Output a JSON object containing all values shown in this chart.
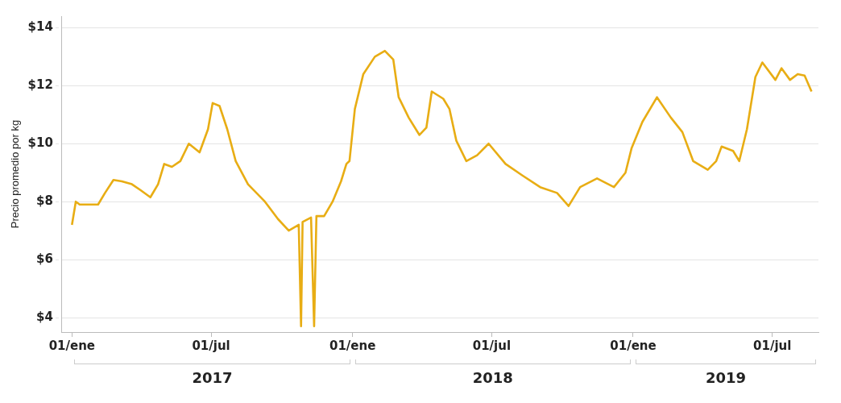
{
  "chart_data": {
    "type": "line",
    "ylabel": "Precio promedio por kg",
    "x": [
      "2017-01-01",
      "2017-01-06",
      "2017-01-11",
      "2017-01-24",
      "2017-02-04",
      "2017-02-13",
      "2017-02-24",
      "2017-03-07",
      "2017-03-20",
      "2017-03-31",
      "2017-04-13",
      "2017-04-23",
      "2017-05-01",
      "2017-05-11",
      "2017-05-22",
      "2017-06-02",
      "2017-06-16",
      "2017-06-27",
      "2017-07-03",
      "2017-07-12",
      "2017-07-22",
      "2017-08-02",
      "2017-08-18",
      "2017-09-09",
      "2017-09-26",
      "2017-10-10",
      "2017-10-23",
      "2017-10-26",
      "2017-10-28",
      "2017-11-08",
      "2017-11-12",
      "2017-11-15",
      "2017-11-25",
      "2017-12-06",
      "2017-12-17",
      "2017-12-24",
      "2017-12-28",
      "2018-01-04",
      "2018-01-15",
      "2018-01-30",
      "2018-02-12",
      "2018-02-23",
      "2018-03-02",
      "2018-03-15",
      "2018-03-29",
      "2018-04-07",
      "2018-04-14",
      "2018-04-29",
      "2018-05-07",
      "2018-05-16",
      "2018-05-29",
      "2018-06-12",
      "2018-06-27",
      "2018-07-19",
      "2018-08-10",
      "2018-09-02",
      "2018-09-24",
      "2018-10-09",
      "2018-10-24",
      "2018-11-15",
      "2018-12-07",
      "2018-12-22",
      "2018-12-30",
      "2019-01-13",
      "2019-02-01",
      "2019-02-19",
      "2019-03-06",
      "2019-03-20",
      "2019-04-08",
      "2019-04-19",
      "2019-04-26",
      "2019-05-11",
      "2019-05-19",
      "2019-05-29",
      "2019-06-09",
      "2019-06-18",
      "2019-07-05",
      "2019-07-13",
      "2019-07-24",
      "2019-08-03",
      "2019-08-12",
      "2019-08-21"
    ],
    "series": [
      {
        "color": "#e8ad14",
        "values": [
          7.2,
          8.0,
          7.9,
          7.9,
          7.9,
          8.3,
          8.75,
          8.7,
          8.6,
          8.4,
          8.15,
          8.6,
          9.3,
          9.2,
          9.4,
          10.0,
          9.7,
          10.5,
          11.4,
          11.3,
          10.5,
          9.4,
          8.6,
          8.0,
          7.4,
          7.0,
          7.2,
          3.7,
          7.3,
          7.45,
          3.7,
          7.5,
          7.5,
          8.0,
          8.7,
          9.3,
          9.4,
          11.2,
          12.4,
          13.0,
          13.2,
          12.9,
          11.6,
          10.9,
          10.3,
          10.55,
          11.8,
          11.55,
          11.2,
          10.1,
          9.4,
          9.6,
          10.0,
          9.3,
          8.9,
          8.5,
          8.3,
          7.85,
          8.5,
          8.8,
          8.5,
          9.0,
          9.85,
          10.75,
          11.6,
          10.9,
          10.4,
          9.4,
          9.1,
          9.4,
          9.9,
          9.75,
          9.4,
          10.5,
          12.3,
          12.8,
          12.2,
          12.6,
          12.2,
          12.4,
          12.35,
          11.8
        ]
      }
    ],
    "xlim": [
      "2016-12-19",
      "2019-08-30"
    ],
    "xticks": [
      {
        "value": "2017-01-01",
        "label": "01/ene"
      },
      {
        "value": "2017-07-01",
        "label": "01/jul"
      },
      {
        "value": "2018-01-01",
        "label": "01/ene"
      },
      {
        "value": "2018-07-01",
        "label": "01/jul"
      },
      {
        "value": "2019-01-01",
        "label": "01/ene"
      },
      {
        "value": "2019-07-01",
        "label": "01/jul"
      }
    ],
    "ylim": [
      3.5,
      14.4
    ],
    "yticks": [
      {
        "value": 4,
        "label": "$4"
      },
      {
        "value": 6,
        "label": "$6"
      },
      {
        "value": 8,
        "label": "$8"
      },
      {
        "value": 10,
        "label": "$10"
      },
      {
        "value": 12,
        "label": "$12"
      },
      {
        "value": 14,
        "label": "$14"
      }
    ],
    "annotations": [
      "2017",
      "2018",
      "2019"
    ],
    "grid": "y",
    "legend": false,
    "marker": "none",
    "line_style": "solid"
  }
}
